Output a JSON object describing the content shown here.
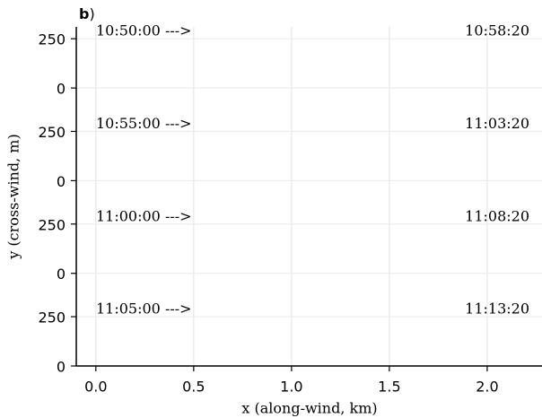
{
  "chart_data": {
    "type": "annotated-axes",
    "panel_label": {
      "letter": "b",
      "paren": ")"
    },
    "xlabel": "x (along-wind, km)",
    "ylabel": "y (cross-wind, m)",
    "xlim": [
      -0.1,
      2.28
    ],
    "xticks": [
      {
        "value": 0,
        "label": "0.0"
      },
      {
        "value": 0.5,
        "label": "0.5"
      },
      {
        "value": 1,
        "label": "1.0"
      },
      {
        "value": 1.5,
        "label": "1.5"
      },
      {
        "value": 2,
        "label": "2.0"
      }
    ],
    "ylim": [
      0,
      1720
    ],
    "yticks": [
      0,
      {
        "value": 250,
        "label": "250"
      },
      {
        "value": 470,
        "label": "0"
      },
      {
        "value": 720,
        "label": "250"
      },
      {
        "value": 940,
        "label": "0"
      },
      {
        "value": 1190,
        "label": "250"
      },
      {
        "value": 1410,
        "label": "0"
      },
      {
        "value": 1660,
        "label": "250"
      }
    ],
    "grid": true,
    "rows": [
      {
        "start": "10:50:00 --->",
        "end": "10:58:20"
      },
      {
        "start": "10:55:00 --->",
        "end": "11:03:20"
      },
      {
        "start": "11:00:00 --->",
        "end": "11:08:20"
      },
      {
        "start": "11:05:00 --->",
        "end": "11:13:20"
      }
    ]
  }
}
